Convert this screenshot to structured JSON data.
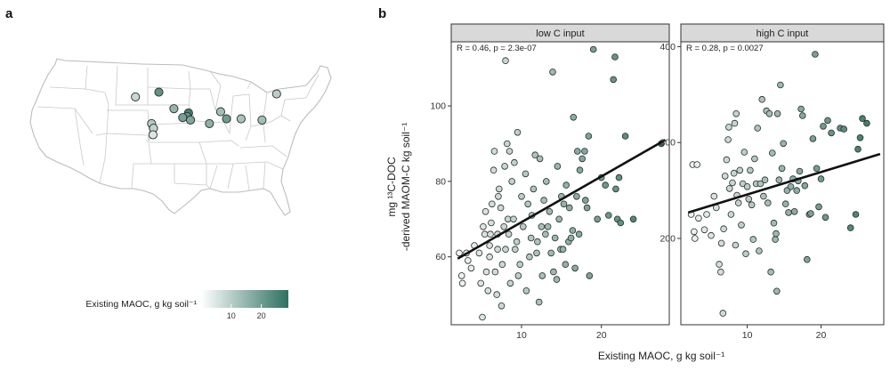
{
  "panel_a": {
    "label": "a",
    "legend": {
      "title": "Existing MAOC, g kg soil⁻¹",
      "ticks": [
        10,
        20
      ],
      "range": [
        0,
        29
      ],
      "color_low": "#ffffff",
      "color_high": "#2e7060"
    },
    "sites": [
      {
        "lon": -104.9,
        "lat": 44.2,
        "maoc": 8
      },
      {
        "lon": -100.1,
        "lat": 45.0,
        "maoc": 22
      },
      {
        "lon": -97.0,
        "lat": 42.2,
        "maoc": 15
      },
      {
        "lon": -94.0,
        "lat": 41.5,
        "maoc": 26
      },
      {
        "lon": -94.3,
        "lat": 40.9,
        "maoc": 22
      },
      {
        "lon": -95.2,
        "lat": 40.7,
        "maoc": 19
      },
      {
        "lon": -93.6,
        "lat": 40.3,
        "maoc": 18
      },
      {
        "lon": -101.6,
        "lat": 39.7,
        "maoc": 11
      },
      {
        "lon": -101.2,
        "lat": 38.9,
        "maoc": 9
      },
      {
        "lon": -101.3,
        "lat": 37.8,
        "maoc": 5
      },
      {
        "lon": -89.7,
        "lat": 39.7,
        "maoc": 16
      },
      {
        "lon": -87.4,
        "lat": 41.7,
        "maoc": 13
      },
      {
        "lon": -86.2,
        "lat": 40.5,
        "maoc": 20
      },
      {
        "lon": -83.2,
        "lat": 40.5,
        "maoc": 12
      },
      {
        "lon": -78.9,
        "lat": 40.3,
        "maoc": 13
      },
      {
        "lon": -75.9,
        "lat": 44.7,
        "maoc": 10
      }
    ]
  },
  "chart_data": {
    "type": "scatter",
    "panel_label": "b",
    "xlabel": "Existing MAOC, g kg soil⁻¹",
    "ylabel_line1": "mg ¹³C-DOC",
    "ylabel_line2": "-derived MAOM-C kg soil⁻¹",
    "color_scale": {
      "low": "#ffffff",
      "high": "#2e7060",
      "range": [
        0,
        29
      ]
    },
    "facets": [
      {
        "title": "low C input",
        "stat_label": "R = 0.46, p = 2.3e-07",
        "xlim": [
          1.2,
          28.5
        ],
        "ylim": [
          42,
          117
        ],
        "xticks": [
          10,
          20
        ],
        "yticks": [
          60,
          80,
          100
        ],
        "fit": {
          "x": [
            2,
            28
          ],
          "y": [
            59.5,
            91.0
          ]
        },
        "points": [
          [
            2.2,
            61
          ],
          [
            2.5,
            55
          ],
          [
            2.6,
            53
          ],
          [
            3.1,
            61
          ],
          [
            3.3,
            59
          ],
          [
            3.7,
            57
          ],
          [
            4.1,
            63
          ],
          [
            4.7,
            61
          ],
          [
            4.9,
            53
          ],
          [
            5.1,
            44
          ],
          [
            5.2,
            68
          ],
          [
            5.4,
            66
          ],
          [
            5.5,
            72
          ],
          [
            5.6,
            56
          ],
          [
            5.8,
            51
          ],
          [
            6.0,
            60
          ],
          [
            6.0,
            63
          ],
          [
            6.1,
            66
          ],
          [
            6.2,
            69
          ],
          [
            6.3,
            74
          ],
          [
            6.5,
            83
          ],
          [
            6.6,
            88
          ],
          [
            6.7,
            56
          ],
          [
            6.9,
            50
          ],
          [
            7.0,
            62
          ],
          [
            7.0,
            66
          ],
          [
            7.1,
            76
          ],
          [
            7.2,
            78
          ],
          [
            7.4,
            73
          ],
          [
            7.5,
            47
          ],
          [
            7.6,
            58
          ],
          [
            7.8,
            68
          ],
          [
            7.9,
            84
          ],
          [
            8.0,
            62
          ],
          [
            8.0,
            112
          ],
          [
            8.2,
            90
          ],
          [
            8.3,
            70
          ],
          [
            8.4,
            66
          ],
          [
            8.5,
            88
          ],
          [
            8.6,
            53
          ],
          [
            8.8,
            80
          ],
          [
            9.0,
            70
          ],
          [
            9.1,
            85
          ],
          [
            9.2,
            62
          ],
          [
            9.4,
            64
          ],
          [
            9.5,
            93
          ],
          [
            9.6,
            55
          ],
          [
            9.8,
            58
          ],
          [
            10.0,
            76
          ],
          [
            10.2,
            68
          ],
          [
            10.5,
            82
          ],
          [
            10.6,
            51
          ],
          [
            10.8,
            74
          ],
          [
            11.0,
            60
          ],
          [
            11.2,
            65
          ],
          [
            11.3,
            71
          ],
          [
            11.5,
            78
          ],
          [
            11.7,
            87
          ],
          [
            11.9,
            61
          ],
          [
            12.0,
            64
          ],
          [
            12.2,
            48
          ],
          [
            12.3,
            86
          ],
          [
            12.5,
            68
          ],
          [
            12.6,
            55
          ],
          [
            12.8,
            75
          ],
          [
            13.0,
            66
          ],
          [
            13.1,
            80
          ],
          [
            13.3,
            68
          ],
          [
            13.5,
            72
          ],
          [
            13.7,
            61
          ],
          [
            13.9,
            109
          ],
          [
            14.0,
            56
          ],
          [
            14.2,
            65
          ],
          [
            14.4,
            54
          ],
          [
            14.5,
            84
          ],
          [
            14.7,
            70
          ],
          [
            14.9,
            62
          ],
          [
            15.0,
            76
          ],
          [
            15.2,
            62
          ],
          [
            15.3,
            74
          ],
          [
            15.5,
            58
          ],
          [
            15.6,
            79
          ],
          [
            15.9,
            64
          ],
          [
            16.0,
            73
          ],
          [
            16.2,
            65
          ],
          [
            16.4,
            67
          ],
          [
            16.5,
            97
          ],
          [
            16.7,
            57
          ],
          [
            16.9,
            76
          ],
          [
            17.0,
            88
          ],
          [
            17.2,
            66
          ],
          [
            17.3,
            83
          ],
          [
            17.6,
            86
          ],
          [
            17.9,
            88
          ],
          [
            18.0,
            75
          ],
          [
            18.2,
            73
          ],
          [
            18.4,
            92
          ],
          [
            18.5,
            55
          ],
          [
            19.0,
            115
          ],
          [
            19.5,
            70
          ],
          [
            20.0,
            81
          ],
          [
            20.5,
            79
          ],
          [
            20.9,
            71
          ],
          [
            21.5,
            107
          ],
          [
            21.7,
            113
          ],
          [
            21.8,
            78
          ],
          [
            22.0,
            70
          ],
          [
            22.2,
            81
          ],
          [
            22.4,
            69
          ],
          [
            23.0,
            92
          ],
          [
            24.0,
            70
          ],
          [
            27.5,
            90
          ]
        ]
      },
      {
        "title": "high C input",
        "stat_label": "R = 0.28, p = 0.0027",
        "xlim": [
          1.0,
          28.5
        ],
        "ylim": [
          110,
          405
        ],
        "xticks": [
          10,
          20
        ],
        "yticks": [
          200,
          300,
          400
        ],
        "fit": {
          "x": [
            2,
            28
          ],
          "y": [
            227,
            288
          ]
        },
        "points": [
          [
            2.4,
            225
          ],
          [
            2.6,
            277
          ],
          [
            2.8,
            207
          ],
          [
            2.9,
            200
          ],
          [
            3.2,
            277
          ],
          [
            3.4,
            221
          ],
          [
            4.2,
            209
          ],
          [
            4.5,
            225
          ],
          [
            5.1,
            203
          ],
          [
            5.5,
            244
          ],
          [
            5.8,
            232
          ],
          [
            6.2,
            173
          ],
          [
            6.4,
            165
          ],
          [
            6.5,
            195
          ],
          [
            6.7,
            122
          ],
          [
            6.8,
            210
          ],
          [
            7.0,
            265
          ],
          [
            7.2,
            282
          ],
          [
            7.4,
            303
          ],
          [
            7.5,
            316
          ],
          [
            7.6,
            252
          ],
          [
            7.8,
            225
          ],
          [
            8.0,
            258
          ],
          [
            8.2,
            268
          ],
          [
            8.3,
            320
          ],
          [
            8.4,
            193
          ],
          [
            8.5,
            330
          ],
          [
            8.6,
            245
          ],
          [
            8.8,
            237
          ],
          [
            9.0,
            271
          ],
          [
            9.2,
            214
          ],
          [
            9.4,
            257
          ],
          [
            9.6,
            290
          ],
          [
            9.8,
            184
          ],
          [
            10.0,
            254
          ],
          [
            10.2,
            241
          ],
          [
            10.4,
            271
          ],
          [
            10.6,
            235
          ],
          [
            10.8,
            199
          ],
          [
            11.0,
            283
          ],
          [
            11.2,
            257
          ],
          [
            11.4,
            315
          ],
          [
            11.6,
            187
          ],
          [
            11.8,
            257
          ],
          [
            12.0,
            345
          ],
          [
            12.2,
            244
          ],
          [
            12.4,
            261
          ],
          [
            12.6,
            333
          ],
          [
            12.8,
            237
          ],
          [
            13.0,
            330
          ],
          [
            13.2,
            165
          ],
          [
            13.4,
            289
          ],
          [
            13.6,
            216
          ],
          [
            13.8,
            199
          ],
          [
            13.9,
            205
          ],
          [
            14.0,
            145
          ],
          [
            14.1,
            330
          ],
          [
            14.3,
            261
          ],
          [
            14.5,
            360
          ],
          [
            14.7,
            273
          ],
          [
            14.9,
            299
          ],
          [
            15.2,
            236
          ],
          [
            15.4,
            250
          ],
          [
            15.6,
            227
          ],
          [
            15.9,
            254
          ],
          [
            16.2,
            262
          ],
          [
            16.4,
            228
          ],
          [
            16.7,
            250
          ],
          [
            16.9,
            260
          ],
          [
            17.1,
            270
          ],
          [
            17.3,
            335
          ],
          [
            17.5,
            328
          ],
          [
            17.8,
            255
          ],
          [
            18.1,
            178
          ],
          [
            18.4,
            225
          ],
          [
            18.6,
            226
          ],
          [
            18.9,
            304
          ],
          [
            19.2,
            392
          ],
          [
            19.4,
            273
          ],
          [
            19.7,
            233
          ],
          [
            20.0,
            262
          ],
          [
            20.3,
            317
          ],
          [
            20.6,
            222
          ],
          [
            20.9,
            323
          ],
          [
            21.4,
            310
          ],
          [
            22.6,
            315
          ],
          [
            23.1,
            314
          ],
          [
            24.0,
            211
          ],
          [
            24.7,
            225
          ],
          [
            25.0,
            293
          ],
          [
            25.3,
            305
          ],
          [
            25.6,
            325
          ],
          [
            26.2,
            320
          ]
        ]
      }
    ]
  }
}
